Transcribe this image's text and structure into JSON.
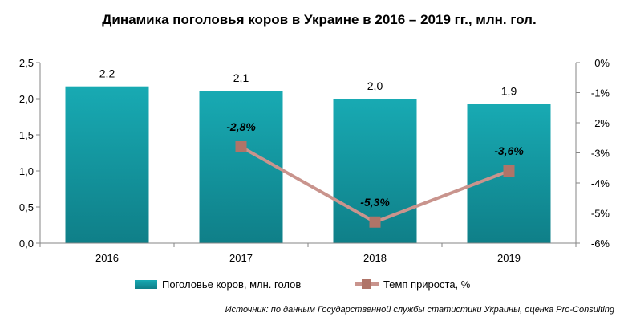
{
  "chart_data": {
    "type": "bar",
    "title": "Динамика поголовья коров в Украине в 2016 – 2019 гг., млн. гол.",
    "categories": [
      "2016",
      "2017",
      "2018",
      "2019"
    ],
    "series": [
      {
        "name": "Поголовье коров, млн. голов",
        "type": "bar",
        "axis": "left",
        "values": [
          2.17,
          2.11,
          2.0,
          1.93
        ],
        "labels": [
          "2,2",
          "2,1",
          "2,0",
          "1,9"
        ],
        "color": "#17a2ad"
      },
      {
        "name": "Темп прироста, %",
        "type": "line",
        "axis": "right",
        "values": [
          null,
          -2.8,
          -5.3,
          -3.6
        ],
        "labels": [
          null,
          "-2,8%",
          "-5,3%",
          "-3,6%"
        ],
        "color": "#c9948d",
        "marker_color": "#b07468"
      }
    ],
    "y_left": {
      "lim": [
        0,
        2.5
      ],
      "ticks": [
        0,
        0.5,
        1.0,
        1.5,
        2.0,
        2.5
      ],
      "tick_labels": [
        "0,0",
        "0,5",
        "1,0",
        "1,5",
        "2,0",
        "2,5"
      ]
    },
    "y_right": {
      "lim": [
        -6,
        0
      ],
      "ticks": [
        0,
        -1,
        -2,
        -3,
        -4,
        -5,
        -6
      ],
      "tick_labels": [
        "0%",
        "-1%",
        "-2%",
        "-3%",
        "-4%",
        "-5%",
        "-6%"
      ]
    },
    "grid": false,
    "legend_position": "bottom",
    "source": "Источник: по данным Государственной службы статистики Украины, оценка Pro-Consulting"
  }
}
